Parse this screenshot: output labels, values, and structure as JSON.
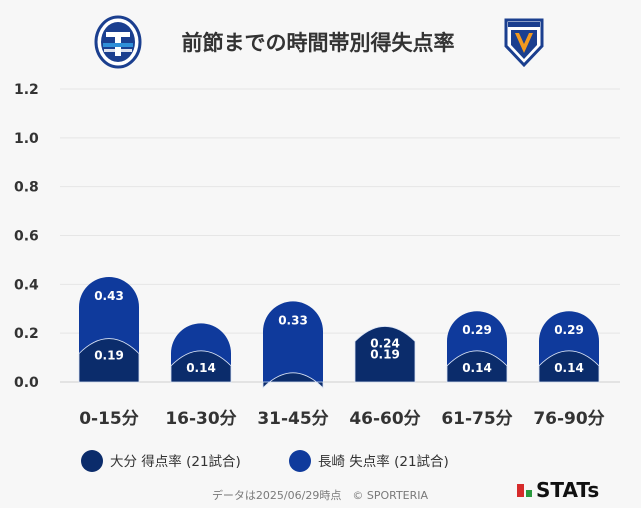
{
  "header": {
    "title": "前節までの時間帯別得失点率",
    "home_logo": "oita-trinita-crest",
    "away_logo": "v-varen-nagasaki-crest"
  },
  "chart_data": {
    "type": "bar",
    "title": "前節までの時間帯別得失点率",
    "categories": [
      "0-15分",
      "16-30分",
      "31-45分",
      "46-60分",
      "61-75分",
      "76-90分"
    ],
    "series": [
      {
        "name": "大分 得点率 (21試合)",
        "values": [
          0.19,
          0.14,
          0.05,
          0.24,
          0.14,
          0.14
        ],
        "labels": [
          "0.19",
          "0.14",
          "",
          "0.24",
          "0.14",
          "0.14"
        ],
        "color": "#0b2c6b"
      },
      {
        "name": "長崎 失点率 (21試合)",
        "values": [
          0.43,
          0.24,
          0.33,
          0.19,
          0.29,
          0.29
        ],
        "labels": [
          "0.43",
          "",
          "0.33",
          "0.19",
          "0.29",
          "0.29"
        ],
        "color": "#0f3a9c"
      }
    ],
    "ylim": [
      0,
      1.2
    ],
    "yticks": [
      "0.0",
      "0.2",
      "0.4",
      "0.6",
      "0.8",
      "1.0",
      "1.2"
    ],
    "grid": true,
    "legend_position": "bottom-left"
  },
  "footer": {
    "note": "データは2025/06/29時点　© SPORTERIA",
    "brand": "STATs"
  }
}
